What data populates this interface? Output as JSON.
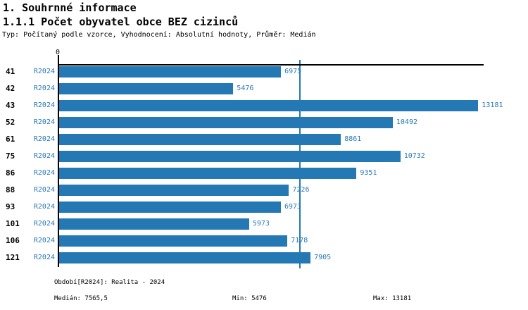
{
  "header": {
    "title": "1. Souhrnné informace",
    "subtitle": "1.1.1 Počet obyvatel obce BEZ cizinců",
    "meta": "Typ: Počítaný podle vzorce, Vyhodnocení: Absolutní hodnoty, Průměr: Medián"
  },
  "chart_data": {
    "type": "bar",
    "orientation": "horizontal",
    "title": "1.1.1 Počet obyvatel obce BEZ cizinců",
    "categories": [
      "41",
      "42",
      "43",
      "52",
      "61",
      "75",
      "86",
      "88",
      "93",
      "101",
      "106",
      "121"
    ],
    "series_label": "R2024",
    "values": [
      6975,
      5476,
      13181,
      10492,
      8861,
      10732,
      9351,
      7226,
      6973,
      5973,
      7178,
      7905
    ],
    "xlim": [
      0,
      13350
    ],
    "origin_tick_label": "0",
    "median": 7565.5,
    "grid": false,
    "legend": "none",
    "value_labels": "outside-end"
  },
  "colors": {
    "bar": "#2478b4",
    "blue_text": "#2878b8",
    "median_line": "#2478b4",
    "axis": "#000000"
  },
  "footer": {
    "period": "Období[R2024]: Realita - 2024",
    "median": "Medián: 7565,5",
    "min": "Min: 5476",
    "max": "Max: 13181"
  }
}
